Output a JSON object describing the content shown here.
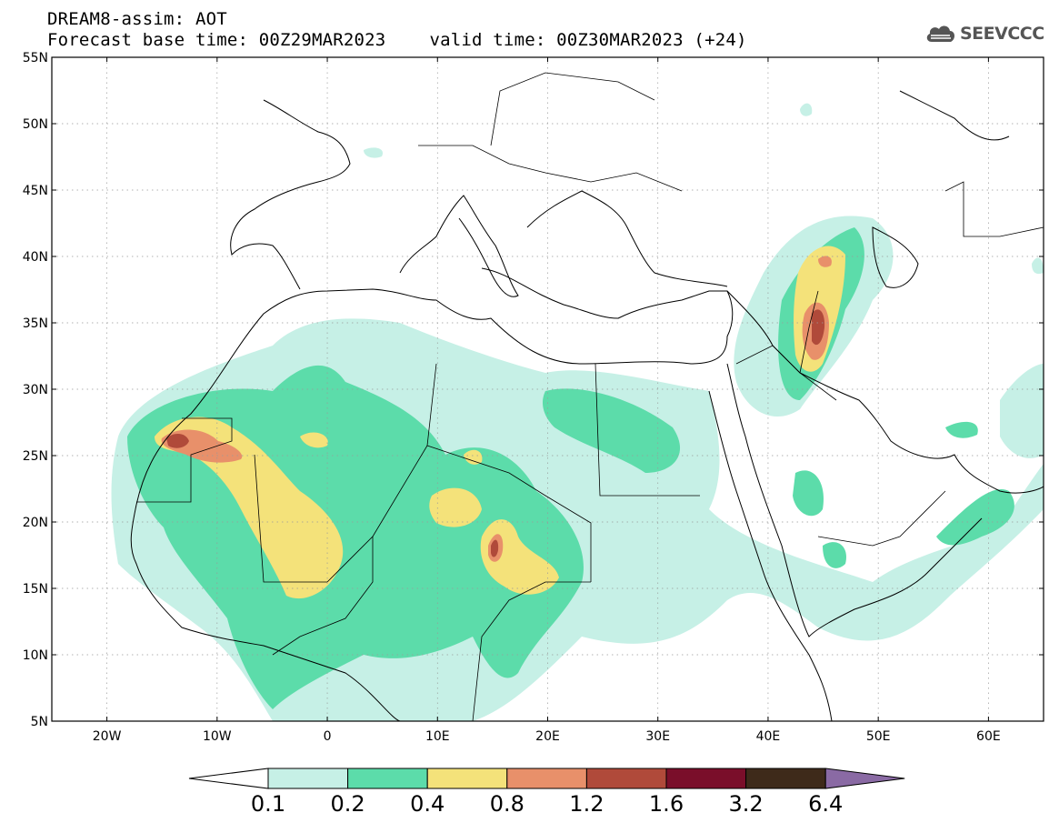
{
  "header": {
    "model_line": "DREAM8-assim: AOT",
    "base_time_label": "Forecast base time: 00Z29MAR2023",
    "valid_time_label": "valid time: 00Z30MAR2023 (+24)"
  },
  "logo": {
    "text": "SEEVCCC",
    "icon": "cloud-icon"
  },
  "map": {
    "lon_range": [
      -25,
      65
    ],
    "lat_range": [
      5,
      55
    ],
    "lat_ticks": [
      {
        "value": 55,
        "label": "55N"
      },
      {
        "value": 50,
        "label": "50N"
      },
      {
        "value": 45,
        "label": "45N"
      },
      {
        "value": 40,
        "label": "40N"
      },
      {
        "value": 35,
        "label": "35N"
      },
      {
        "value": 30,
        "label": "30N"
      },
      {
        "value": 25,
        "label": "25N"
      },
      {
        "value": 20,
        "label": "20N"
      },
      {
        "value": 15,
        "label": "15N"
      },
      {
        "value": 10,
        "label": "10N"
      },
      {
        "value": 5,
        "label": "5N"
      }
    ],
    "lon_ticks": [
      {
        "value": -20,
        "label": "20W"
      },
      {
        "value": -10,
        "label": "10W"
      },
      {
        "value": 0,
        "label": "0"
      },
      {
        "value": 10,
        "label": "10E"
      },
      {
        "value": 20,
        "label": "20E"
      },
      {
        "value": 30,
        "label": "30E"
      },
      {
        "value": 40,
        "label": "40E"
      },
      {
        "value": 50,
        "label": "50E"
      },
      {
        "value": 60,
        "label": "60E"
      }
    ],
    "grid": true
  },
  "colorbar": {
    "labels": [
      "0.1",
      "0.2",
      "0.4",
      "0.8",
      "1.2",
      "1.6",
      "3.2",
      "6.4"
    ],
    "colors": [
      "#ffffff",
      "#c6f0e6",
      "#5cdcaa",
      "#f4e27a",
      "#e8906a",
      "#b04a3a",
      "#7a0e2a",
      "#3e2a1a",
      "#8a6aa4"
    ]
  }
}
